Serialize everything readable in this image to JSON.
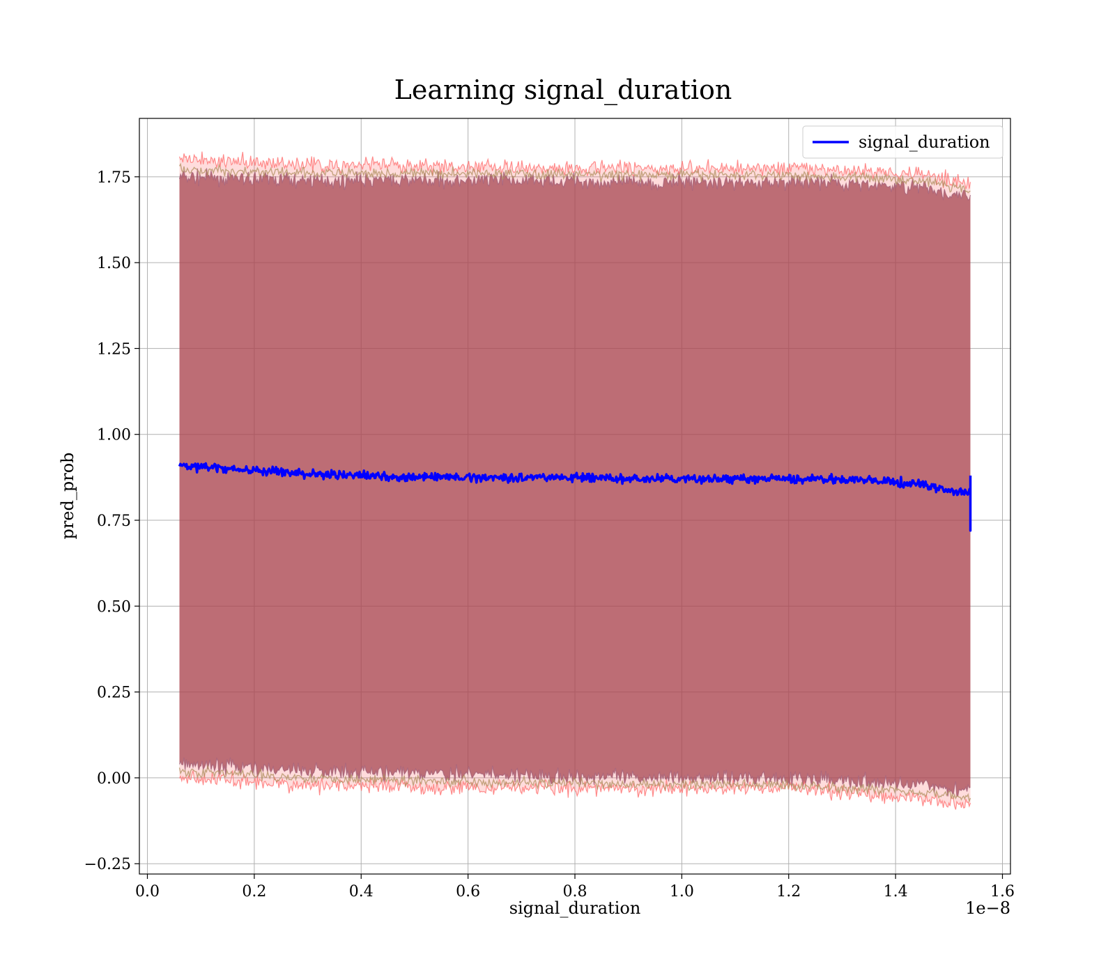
{
  "chart_data": {
    "type": "line",
    "title": "Learning signal_duration",
    "xlabel": "signal_duration",
    "ylabel": "pred_prob",
    "x_offset_label": "1e−8",
    "xlim": [
      -0.015,
      1.615
    ],
    "ylim": [
      -0.28,
      1.92
    ],
    "x_ticks": [
      0.0,
      0.2,
      0.4,
      0.6,
      0.8,
      1.0,
      1.2,
      1.4,
      1.6
    ],
    "x_tick_labels": [
      "0.0",
      "0.2",
      "0.4",
      "0.6",
      "0.8",
      "1.0",
      "1.2",
      "1.4",
      "1.6"
    ],
    "y_ticks": [
      -0.25,
      0.0,
      0.25,
      0.5,
      0.75,
      1.0,
      1.25,
      1.5,
      1.75
    ],
    "y_tick_labels": [
      "−0.25",
      "0.00",
      "0.25",
      "0.50",
      "0.75",
      "1.00",
      "1.25",
      "1.50",
      "1.75"
    ],
    "grid": true,
    "legend": {
      "position": "top-right",
      "entries": [
        "signal_duration"
      ]
    },
    "series": [
      {
        "name": "signal_duration",
        "color": "#0000ff",
        "x": [
          0.06,
          0.1,
          0.2,
          0.3,
          0.4,
          0.5,
          0.6,
          0.7,
          0.8,
          0.9,
          1.0,
          1.1,
          1.2,
          1.3,
          1.4,
          1.45,
          1.5,
          1.54
        ],
        "y": [
          0.91,
          0.905,
          0.895,
          0.885,
          0.88,
          0.875,
          0.875,
          0.875,
          0.875,
          0.87,
          0.87,
          0.87,
          0.87,
          0.87,
          0.86,
          0.855,
          0.835,
          0.83
        ]
      }
    ],
    "bands": [
      {
        "color": "#8b3a4a",
        "x": [
          0.06,
          0.3,
          0.6,
          0.9,
          1.2,
          1.45,
          1.54
        ],
        "upper": [
          1.75,
          1.74,
          1.74,
          1.735,
          1.735,
          1.72,
          1.69
        ],
        "lower": [
          0.04,
          0.02,
          0.01,
          0.0,
          0.0,
          -0.02,
          -0.04
        ]
      },
      {
        "color": "#ff6060",
        "x": [
          0.06,
          0.3,
          0.6,
          0.9,
          1.2,
          1.45,
          1.54
        ],
        "upper": [
          1.8,
          1.785,
          1.78,
          1.775,
          1.775,
          1.76,
          1.73
        ],
        "lower": [
          0.0,
          -0.02,
          -0.03,
          -0.03,
          -0.03,
          -0.06,
          -0.08
        ]
      }
    ]
  }
}
